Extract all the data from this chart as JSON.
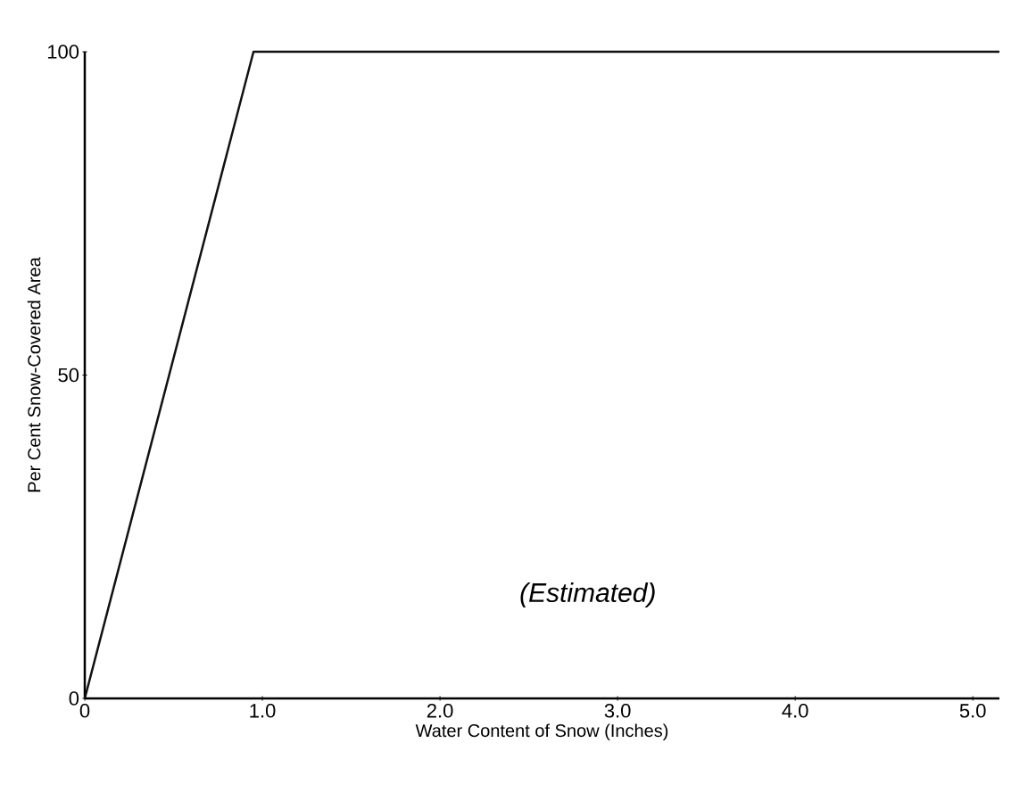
{
  "chart_data": {
    "type": "line",
    "xlabel": "Water Content of Snow (Inches)",
    "ylabel": "Per Cent Snow-Covered Area",
    "x": [
      0,
      0.95,
      5.15
    ],
    "values": [
      0,
      100,
      100
    ],
    "color": "#111111",
    "xlim": [
      0,
      5.15
    ],
    "ylim": [
      0,
      100
    ],
    "xticks": [
      0,
      {
        "value": 1,
        "label": "1.0"
      },
      {
        "value": 2,
        "label": "2.0"
      },
      {
        "value": 3,
        "label": "3.0"
      },
      {
        "value": 4,
        "label": "4.0"
      },
      {
        "value": 5,
        "label": "5.0"
      }
    ],
    "yticks": [
      0,
      50,
      100
    ],
    "annotations": [
      "(Estimated)"
    ],
    "marker": "none",
    "line_style": "solid"
  }
}
